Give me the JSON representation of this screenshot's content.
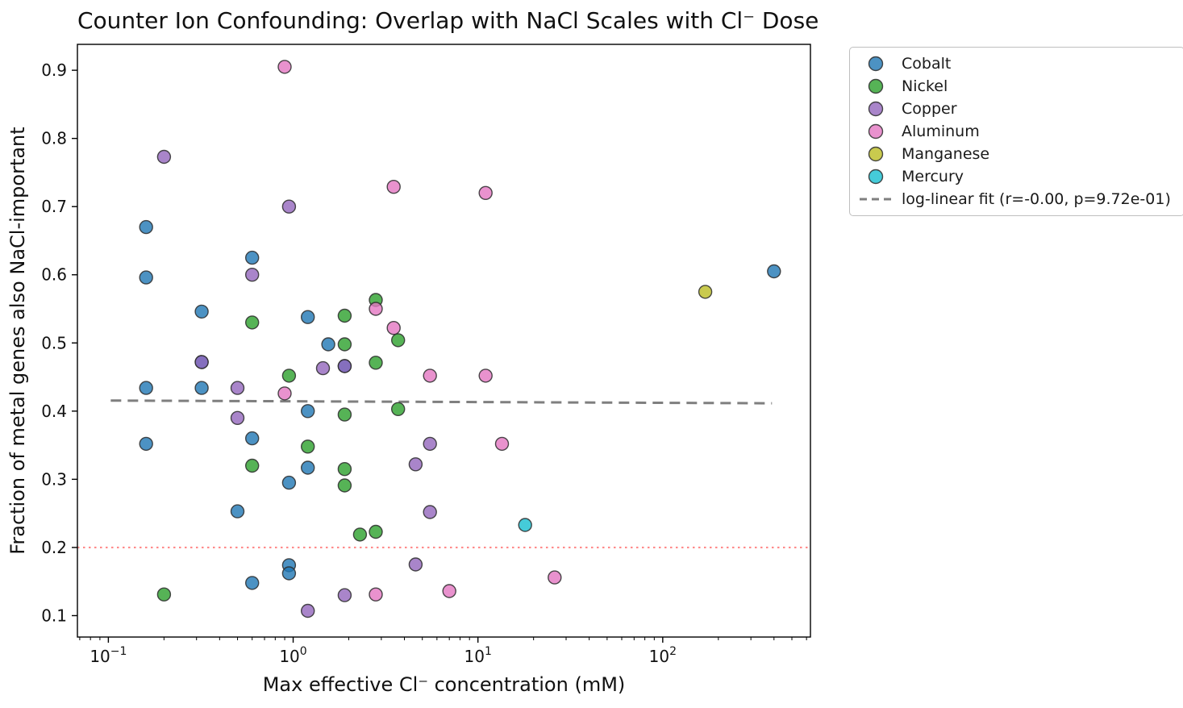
{
  "figure": {
    "kind": "matplotlib-style scatter figure"
  },
  "chart_data": {
    "type": "scatter",
    "title": "Counter Ion Confounding: Overlap with NaCl Scales with Cl⁻ Dose",
    "xlabel": "Max effective Cl⁻ concentration (mM)",
    "ylabel": "Fraction of metal genes also NaCl-important",
    "x_scale": "log",
    "grid": false,
    "legend_position": "outside-top-right",
    "xlim": [
      0.068,
      630
    ],
    "ylim": [
      0.0686,
      0.938
    ],
    "x_major_ticks": [
      {
        "value": 0.1,
        "base": "10",
        "exp": "−1"
      },
      {
        "value": 1,
        "base": "10",
        "exp": "0"
      },
      {
        "value": 10,
        "base": "10",
        "exp": "1"
      },
      {
        "value": 100,
        "base": "10",
        "exp": "2"
      }
    ],
    "y_ticks": [
      "0.1",
      "0.2",
      "0.3",
      "0.4",
      "0.5",
      "0.6",
      "0.7",
      "0.8",
      "0.9"
    ],
    "marker": {
      "radius": 8,
      "fill_opacity": 0.8,
      "edge_color": "#2b2b2b",
      "edge_opacity": 0.85,
      "edge_width": 1.4
    },
    "series": [
      {
        "name": "Cobalt",
        "color": "#1f77b4",
        "points": [
          [
            0.16,
            0.67
          ],
          [
            0.16,
            0.596
          ],
          [
            0.16,
            0.434
          ],
          [
            0.16,
            0.352
          ],
          [
            0.32,
            0.546
          ],
          [
            0.32,
            0.472
          ],
          [
            0.32,
            0.434
          ],
          [
            0.5,
            0.253
          ],
          [
            0.6,
            0.625
          ],
          [
            0.6,
            0.36
          ],
          [
            0.6,
            0.148
          ],
          [
            0.95,
            0.295
          ],
          [
            0.95,
            0.174
          ],
          [
            0.95,
            0.162
          ],
          [
            1.2,
            0.538
          ],
          [
            1.2,
            0.4
          ],
          [
            1.2,
            0.317
          ],
          [
            1.55,
            0.498
          ],
          [
            1.9,
            0.466
          ],
          [
            400,
            0.605
          ]
        ]
      },
      {
        "name": "Nickel",
        "color": "#2ca02c",
        "points": [
          [
            0.2,
            0.131
          ],
          [
            0.6,
            0.53
          ],
          [
            0.6,
            0.32
          ],
          [
            0.95,
            0.452
          ],
          [
            1.2,
            0.348
          ],
          [
            1.9,
            0.54
          ],
          [
            1.9,
            0.498
          ],
          [
            1.9,
            0.395
          ],
          [
            1.9,
            0.315
          ],
          [
            1.9,
            0.291
          ],
          [
            2.3,
            0.219
          ],
          [
            2.8,
            0.563
          ],
          [
            2.8,
            0.471
          ],
          [
            2.8,
            0.223
          ],
          [
            3.7,
            0.504
          ],
          [
            3.7,
            0.403
          ]
        ]
      },
      {
        "name": "Copper",
        "color": "#9467bd",
        "points": [
          [
            0.2,
            0.773
          ],
          [
            0.32,
            0.472
          ],
          [
            0.5,
            0.434
          ],
          [
            0.5,
            0.39
          ],
          [
            0.6,
            0.6
          ],
          [
            0.95,
            0.7
          ],
          [
            1.2,
            0.107
          ],
          [
            1.45,
            0.463
          ],
          [
            1.9,
            0.466
          ],
          [
            1.9,
            0.13
          ],
          [
            4.6,
            0.322
          ],
          [
            4.6,
            0.175
          ],
          [
            5.5,
            0.352
          ],
          [
            5.5,
            0.252
          ]
        ]
      },
      {
        "name": "Aluminum",
        "color": "#e377c2",
        "points": [
          [
            0.9,
            0.905
          ],
          [
            0.9,
            0.426
          ],
          [
            2.8,
            0.55
          ],
          [
            2.8,
            0.131
          ],
          [
            3.5,
            0.729
          ],
          [
            3.5,
            0.522
          ],
          [
            5.5,
            0.452
          ],
          [
            7.0,
            0.136
          ],
          [
            11,
            0.72
          ],
          [
            11,
            0.452
          ],
          [
            13.5,
            0.352
          ],
          [
            26,
            0.156
          ]
        ]
      },
      {
        "name": "Manganese",
        "color": "#bcbd22",
        "points": [
          [
            170,
            0.575
          ]
        ]
      },
      {
        "name": "Mercury",
        "color": "#17becf",
        "points": [
          [
            18,
            0.233
          ]
        ]
      }
    ],
    "fit_line": {
      "label": "log-linear fit (r=-0.00, p=9.72e-01)",
      "color": "#7f7f7f",
      "x": [
        0.103,
        390
      ],
      "y": [
        0.4155,
        0.4115
      ]
    },
    "ref_line": {
      "y": 0.2,
      "color": "#ff8a8a"
    }
  }
}
